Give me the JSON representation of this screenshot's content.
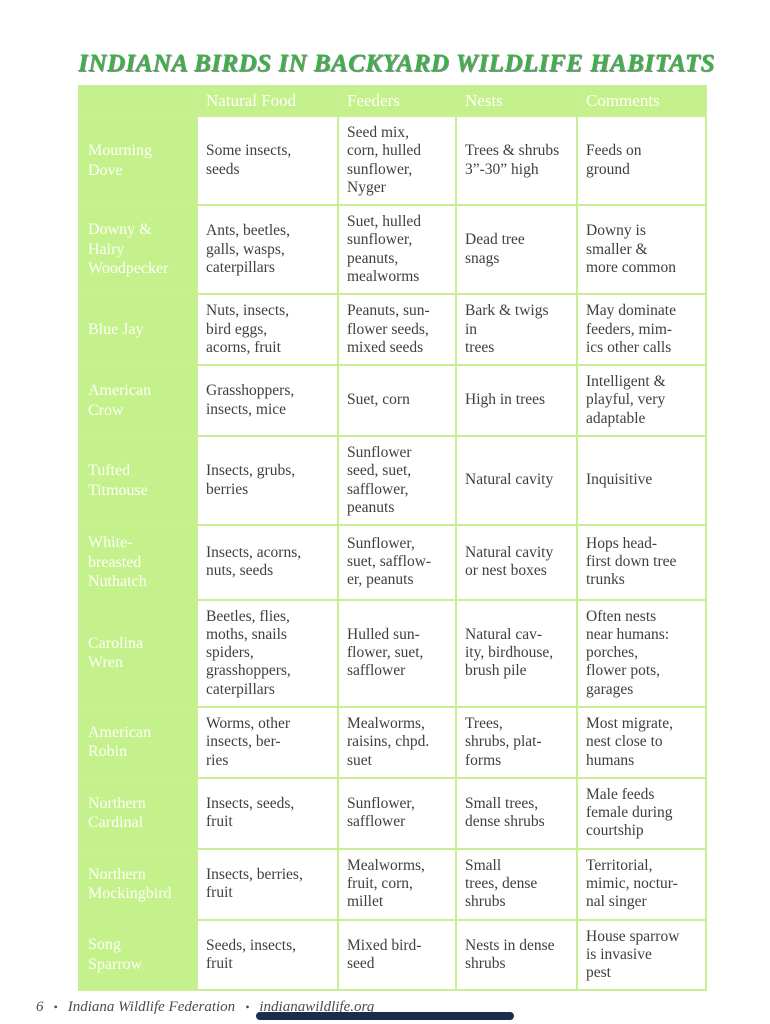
{
  "title": "INDIANA BIRDS IN BACKYARD WILDLIFE HABITATS",
  "colors": {
    "accent_green": "#c5f18c",
    "title_green": "#3db049",
    "border_green": "#c9ee96",
    "body_text": "#3f3f3f",
    "home_indicator": "#1d2b4c"
  },
  "table": {
    "headers": [
      "",
      "Natural Food",
      "Feeders",
      "Nests",
      "Comments"
    ],
    "rows": [
      {
        "bird": "Mourning\nDove",
        "natural_food": "Some insects,\nseeds",
        "feeders": "Seed mix,\ncorn, hulled\nsunflower,\nNyger",
        "nests": "Trees & shrubs\n3”-30” high",
        "comments": "Feeds on\nground"
      },
      {
        "bird": "Downy &\nHairy\nWoodpecker",
        "natural_food": "Ants, beetles,\ngalls, wasps,\ncaterpillars",
        "feeders": "Suet, hulled\nsunflower,\npeanuts,\nmealworms",
        "nests": "Dead tree\nsnags",
        "comments": "Downy is\nsmaller &\nmore common"
      },
      {
        "bird": "Blue Jay",
        "natural_food": "Nuts, insects,\nbird eggs,\nacorns, fruit",
        "feeders": "Peanuts, sun-\nflower seeds,\nmixed seeds",
        "nests": "Bark & twigs\nin\ntrees",
        "comments": "May dominate\nfeeders, mim-\nics other calls"
      },
      {
        "bird": "American\nCrow",
        "natural_food": "Grasshoppers,\ninsects, mice",
        "feeders": "Suet, corn",
        "nests": "High in trees",
        "comments": "Intelligent &\nplayful, very\nadaptable"
      },
      {
        "bird": "Tufted\nTitmouse",
        "natural_food": "Insects, grubs,\nberries",
        "feeders": "Sunflower\nseed, suet,\nsafflower,\npeanuts",
        "nests": "Natural cavity",
        "comments": "Inquisitive"
      },
      {
        "bird": "White-\nbreasted\nNuthatch",
        "natural_food": "Insects, acorns,\nnuts, seeds",
        "feeders": "Sunflower,\nsuet, safflow-\ner, peanuts",
        "nests": "Natural cavity\nor nest boxes",
        "comments": "Hops head-\nfirst down tree\ntrunks"
      },
      {
        "bird": "Carolina\nWren",
        "natural_food": "Beetles, flies,\nmoths, snails\nspiders,\ngrasshoppers,\ncaterpillars",
        "feeders": "Hulled sun-\nflower, suet,\nsafflower",
        "nests": "Natural cav-\nity, birdhouse,\nbrush pile",
        "comments": "Often nests\nnear humans:\nporches,\nflower pots,\ngarages"
      },
      {
        "bird": "American\nRobin",
        "natural_food": "Worms, other\ninsects, ber-\nries",
        "feeders": "Mealworms,\nraisins, chpd.\nsuet",
        "nests": "Trees,\nshrubs, plat-\nforms",
        "comments": "Most migrate,\nnest close to\nhumans"
      },
      {
        "bird": "Northern\nCardinal",
        "natural_food": "Insects, seeds,\nfruit",
        "feeders": "Sunflower,\nsafflower",
        "nests": "Small trees,\ndense shrubs",
        "comments": "Male feeds\nfemale during\ncourtship"
      },
      {
        "bird": "Northern\nMockingbird",
        "natural_food": "Insects, berries,\nfruit",
        "feeders": "Mealworms,\nfruit, corn,\nmillet",
        "nests": "Small\ntrees, dense\nshrubs",
        "comments": "Territorial,\nmimic, noctur-\nnal singer"
      },
      {
        "bird": "Song\nSparrow",
        "natural_food": "Seeds, insects,\nfruit",
        "feeders": "Mixed bird-\nseed",
        "nests": "Nests in dense\nshrubs",
        "comments": "House sparrow\nis invasive\npest"
      }
    ]
  },
  "footer": {
    "page_number": "6",
    "separator": "•",
    "organization": "Indiana Wildlife Federation",
    "website": "indianawildlife.org"
  }
}
